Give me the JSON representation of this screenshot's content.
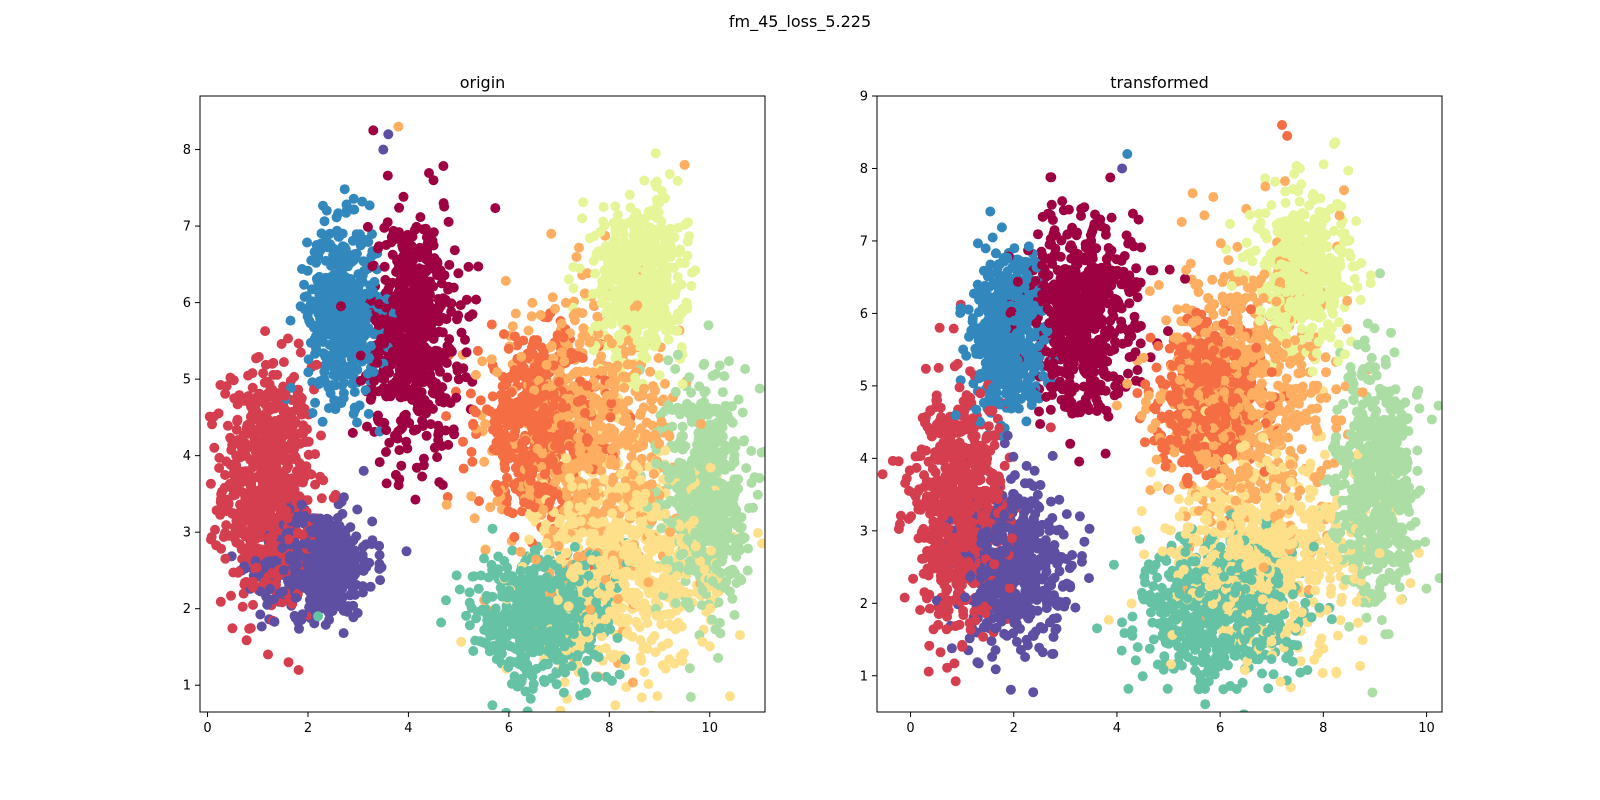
{
  "figure": {
    "suptitle": "fm_45_loss_5.225"
  },
  "palette": {
    "c0": "#9e0142",
    "c1": "#d53e4f",
    "c2": "#f46d43",
    "c3": "#fdae61",
    "c4": "#fee08b",
    "c5": "#e6f598",
    "c6": "#abdda4",
    "c7": "#66c2a5",
    "c8": "#3288bd",
    "c9": "#5e4fa2"
  },
  "chart_data": [
    {
      "type": "scatter",
      "title": "origin",
      "xlabel": "",
      "ylabel": "",
      "xlim": [
        -0.15,
        11.1
      ],
      "ylim": [
        0.65,
        8.7
      ],
      "xticks": [
        0,
        2,
        4,
        6,
        8,
        10
      ],
      "yticks": [
        1,
        2,
        3,
        4,
        5,
        6,
        7,
        8
      ],
      "grid": false,
      "clusters": [
        {
          "color": "c1",
          "cx": 1.2,
          "cy": 3.6,
          "sx": 0.45,
          "sy": 0.8,
          "n": 700
        },
        {
          "color": "c9",
          "cx": 2.2,
          "cy": 2.6,
          "sx": 0.55,
          "sy": 0.35,
          "n": 550
        },
        {
          "color": "c8",
          "cx": 2.7,
          "cy": 5.9,
          "sx": 0.35,
          "sy": 0.55,
          "n": 550
        },
        {
          "color": "c0",
          "cx": 4.1,
          "cy": 5.6,
          "sx": 0.45,
          "sy": 0.75,
          "n": 650
        },
        {
          "color": "c2",
          "cx": 6.6,
          "cy": 4.4,
          "sx": 0.6,
          "sy": 0.55,
          "n": 500
        },
        {
          "color": "c3",
          "cx": 7.6,
          "cy": 4.2,
          "sx": 0.85,
          "sy": 0.9,
          "n": 650
        },
        {
          "color": "c4",
          "cx": 8.3,
          "cy": 2.6,
          "sx": 0.9,
          "sy": 0.7,
          "n": 650
        },
        {
          "color": "c5",
          "cx": 8.6,
          "cy": 6.3,
          "sx": 0.45,
          "sy": 0.5,
          "n": 550
        },
        {
          "color": "c6",
          "cx": 9.9,
          "cy": 3.5,
          "sx": 0.4,
          "sy": 0.75,
          "n": 600
        },
        {
          "color": "c7",
          "cx": 6.7,
          "cy": 1.9,
          "sx": 0.7,
          "sy": 0.45,
          "n": 600
        }
      ],
      "outliers": [
        {
          "color": "c9",
          "x": 3.5,
          "y": 8.0
        },
        {
          "color": "c9",
          "x": 3.6,
          "y": 8.2
        },
        {
          "color": "c3",
          "x": 3.8,
          "y": 8.3
        },
        {
          "color": "c0",
          "x": 3.3,
          "y": 8.25
        },
        {
          "color": "c3",
          "x": 9.5,
          "y": 7.8
        },
        {
          "color": "c0",
          "x": 4.5,
          "y": 7.6
        },
        {
          "color": "c0",
          "x": 4.7,
          "y": 7.3
        },
        {
          "color": "c7",
          "x": 2.2,
          "y": 1.9
        }
      ]
    },
    {
      "type": "scatter",
      "title": "transformed",
      "xlabel": "",
      "ylabel": "",
      "xlim": [
        -0.65,
        10.3
      ],
      "ylim": [
        0.5,
        9.0
      ],
      "xticks": [
        0,
        2,
        4,
        6,
        8,
        10
      ],
      "yticks": [
        1,
        2,
        3,
        4,
        5,
        6,
        7,
        8,
        9
      ],
      "grid": false,
      "clusters": [
        {
          "color": "c1",
          "cx": 0.9,
          "cy": 3.3,
          "sx": 0.45,
          "sy": 0.8,
          "n": 700
        },
        {
          "color": "c9",
          "cx": 2.0,
          "cy": 2.5,
          "sx": 0.5,
          "sy": 0.55,
          "n": 550
        },
        {
          "color": "c8",
          "cx": 1.9,
          "cy": 5.7,
          "sx": 0.35,
          "sy": 0.55,
          "n": 550
        },
        {
          "color": "c0",
          "cx": 3.3,
          "cy": 6.0,
          "sx": 0.55,
          "sy": 0.65,
          "n": 650
        },
        {
          "color": "c2",
          "cx": 5.8,
          "cy": 4.8,
          "sx": 0.5,
          "sy": 0.5,
          "n": 500
        },
        {
          "color": "c3",
          "cx": 6.5,
          "cy": 4.8,
          "sx": 0.85,
          "sy": 1.0,
          "n": 650
        },
        {
          "color": "c4",
          "cx": 6.8,
          "cy": 2.7,
          "sx": 0.9,
          "sy": 0.7,
          "n": 650
        },
        {
          "color": "c5",
          "cx": 7.6,
          "cy": 6.6,
          "sx": 0.45,
          "sy": 0.5,
          "n": 550
        },
        {
          "color": "c6",
          "cx": 9.0,
          "cy": 3.6,
          "sx": 0.4,
          "sy": 0.8,
          "n": 600
        },
        {
          "color": "c7",
          "cx": 6.0,
          "cy": 1.9,
          "sx": 0.75,
          "sy": 0.5,
          "n": 600
        }
      ],
      "outliers": [
        {
          "color": "c9",
          "x": 4.1,
          "y": 8.0
        },
        {
          "color": "c8",
          "x": 4.2,
          "y": 8.2
        },
        {
          "color": "c2",
          "x": 7.2,
          "y": 8.6
        },
        {
          "color": "c2",
          "x": 7.3,
          "y": 8.45
        },
        {
          "color": "c3",
          "x": 8.4,
          "y": 7.7
        },
        {
          "color": "c0",
          "x": 3.5,
          "y": 7.0
        },
        {
          "color": "c1",
          "x": 1.0,
          "y": 1.4
        },
        {
          "color": "c1",
          "x": 0.5,
          "y": 4.8
        }
      ]
    }
  ]
}
